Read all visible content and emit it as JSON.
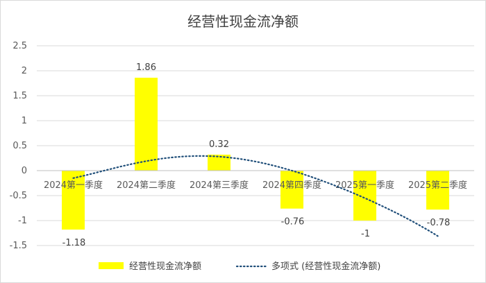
{
  "chart_data": {
    "type": "bar",
    "title": "经营性现金流净额",
    "categories": [
      "2024第一季度",
      "2024第二季度",
      "2024第三季度",
      "2024第四季度",
      "2025第一季度",
      "2025第二季度"
    ],
    "series": [
      {
        "name": "经营性现金流净额",
        "values": [
          -1.18,
          1.86,
          0.32,
          -0.76,
          -1,
          -0.78
        ],
        "color": "#ffff00"
      }
    ],
    "data_labels": [
      "-1.18",
      "1.86",
      "0.32",
      "-0.76",
      "-1",
      "-0.78"
    ],
    "trendline": {
      "name": "多项式 (经营性现金流净额)",
      "type": "polynomial",
      "style": "dotted",
      "color": "#1f4e79",
      "fitted_values": [
        -0.15,
        0.19,
        0.28,
        0.0,
        -0.55,
        -1.31
      ]
    },
    "yticks": [
      "2.5",
      "2",
      "1.5",
      "1",
      "0.5",
      "0",
      "-0.5",
      "-1",
      "-1.5"
    ],
    "ylim": [
      -1.5,
      2.5
    ],
    "legend_position": "bottom",
    "grid": true
  }
}
